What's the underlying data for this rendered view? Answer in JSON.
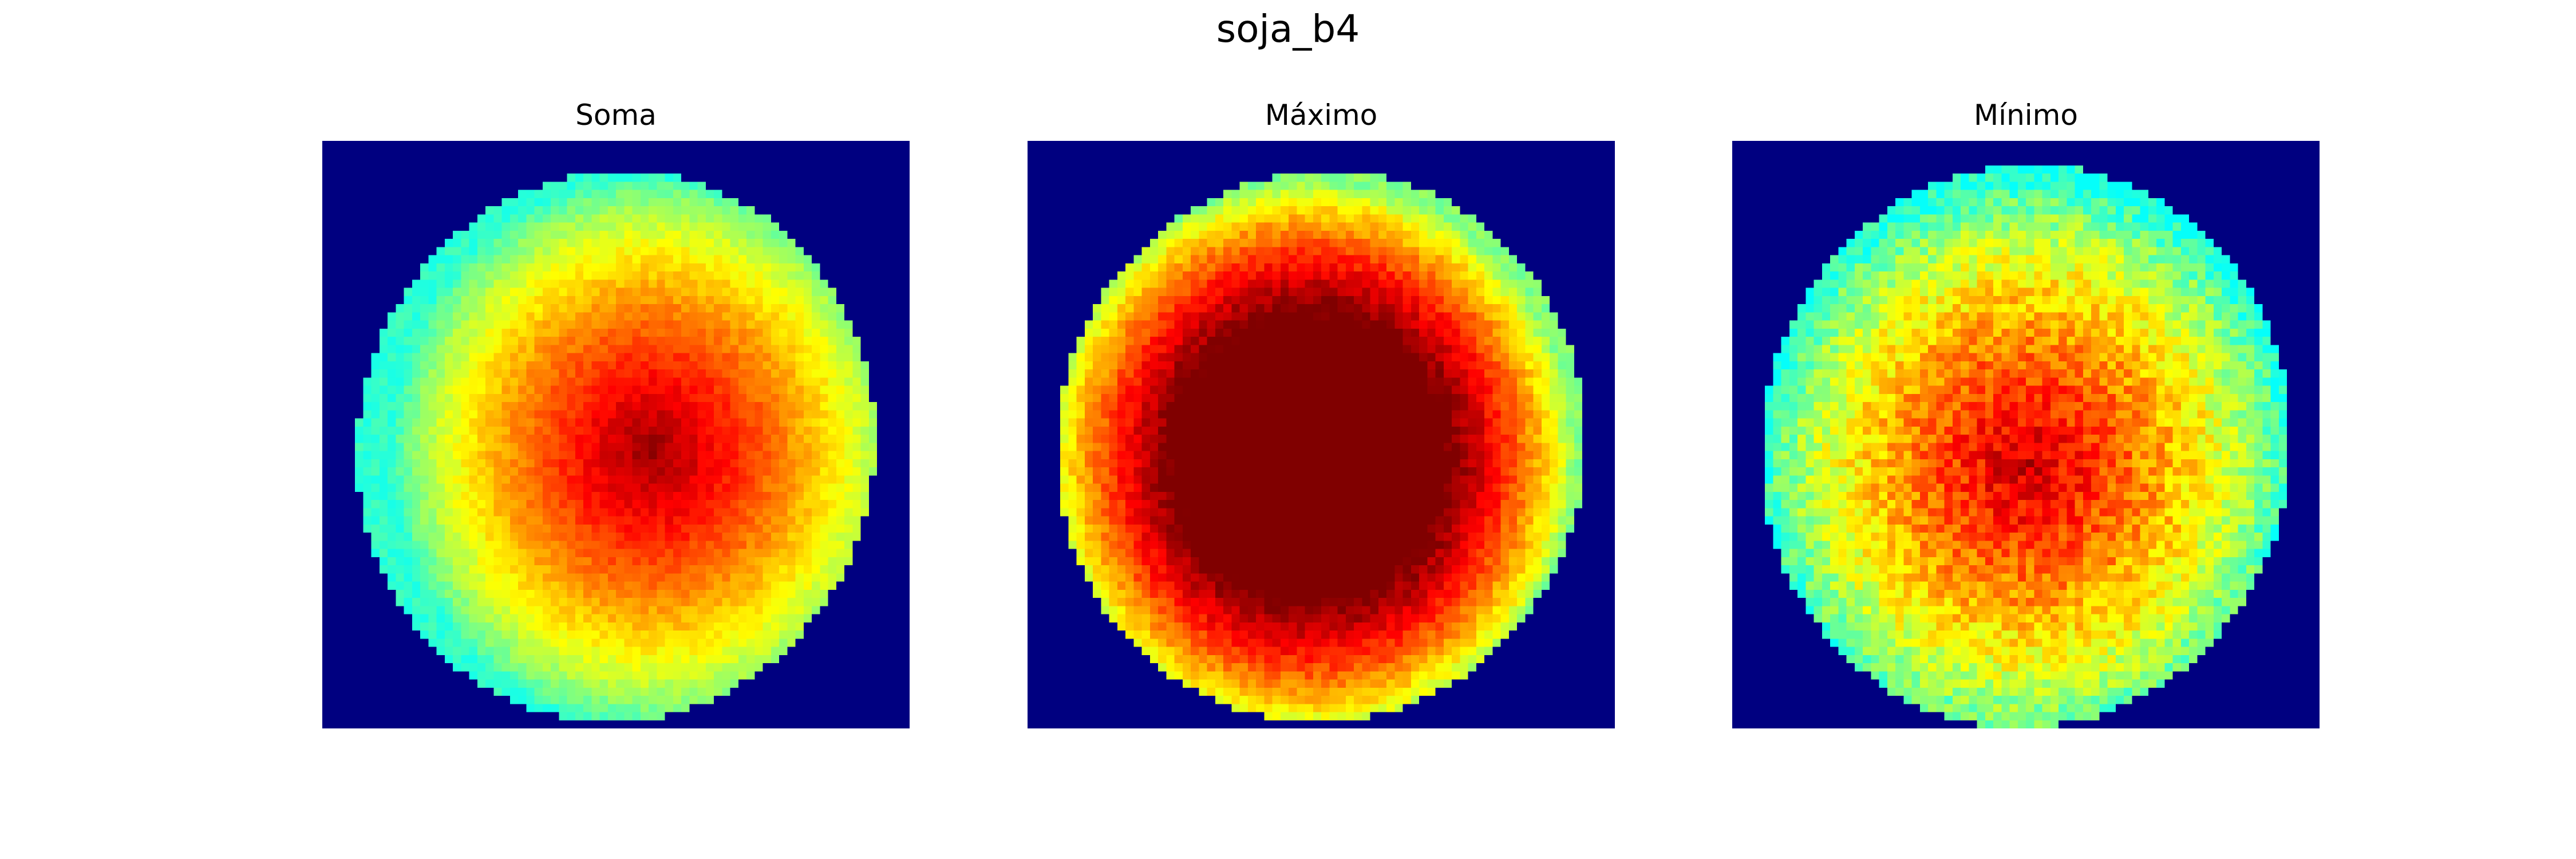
{
  "figure": {
    "title": "soja_b4"
  },
  "colors": {
    "background": "#000080",
    "colormap": "jet"
  },
  "chart_data": [
    {
      "type": "heatmap",
      "title": "Soma",
      "colormap": "jet",
      "grid": false,
      "axes": "off",
      "background_value": 0.0,
      "shape": "tilted ellipse blob",
      "description_levels": {
        "edge": 0.45,
        "center": 1.0
      },
      "grid_size": [
        72,
        72
      ],
      "blob": {
        "cx": 0.5,
        "cy": 0.52,
        "rx": 0.44,
        "ry": 0.47,
        "rotation_deg": -12,
        "peak_cx": 0.56,
        "peak_cy": 0.53,
        "peak_value": 0.98,
        "edge_value": 0.42,
        "noise": 0.03
      }
    },
    {
      "type": "heatmap",
      "title": "Máximo",
      "colormap": "jet",
      "grid": false,
      "axes": "off",
      "background_value": 0.0,
      "shape": "tilted ellipse blob, saturated center",
      "description_levels": {
        "edge": 0.5,
        "center": 1.0
      },
      "grid_size": [
        72,
        72
      ],
      "blob": {
        "cx": 0.5,
        "cy": 0.52,
        "rx": 0.45,
        "ry": 0.47,
        "rotation_deg": -14,
        "peak_cx": 0.48,
        "peak_cy": 0.54,
        "peak_value": 1.4,
        "edge_value": 0.5,
        "noise": 0.04
      }
    },
    {
      "type": "heatmap",
      "title": "Mínimo",
      "colormap": "jet",
      "grid": false,
      "axes": "off",
      "background_value": 0.0,
      "shape": "tilted ellipse blob, noisy",
      "description_levels": {
        "edge": 0.4,
        "center": 0.95
      },
      "grid_size": [
        72,
        72
      ],
      "blob": {
        "cx": 0.5,
        "cy": 0.52,
        "rx": 0.45,
        "ry": 0.48,
        "rotation_deg": -10,
        "peak_cx": 0.5,
        "peak_cy": 0.55,
        "peak_value": 0.93,
        "edge_value": 0.4,
        "noise": 0.07
      }
    }
  ]
}
